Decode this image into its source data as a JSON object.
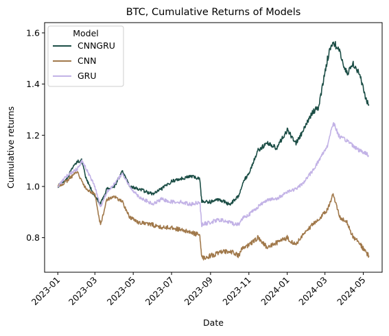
{
  "chart_data": {
    "type": "line",
    "title": "BTC, Cumulative Returns of Models",
    "xlabel": "Date",
    "ylabel": "Cumulative returns",
    "xlim": [
      "2022-12-11",
      "2024-05-31"
    ],
    "ylim": [
      0.665,
      1.64
    ],
    "x_ticks": [
      "2023-01",
      "2023-03",
      "2023-05",
      "2023-07",
      "2023-09",
      "2023-11",
      "2024-01",
      "2024-03",
      "2024-05"
    ],
    "y_ticks": [
      0.8,
      1.0,
      1.2,
      1.4,
      1.6
    ],
    "y_tick_labels": [
      "0.8",
      "1.0",
      "1.2",
      "1.4",
      "1.6"
    ],
    "legend": {
      "title": "Model",
      "placement": "top-left"
    },
    "grid": false,
    "x": [
      "2023-01-01",
      "2023-01-15",
      "2023-02-01",
      "2023-02-08",
      "2023-02-15",
      "2023-03-01",
      "2023-03-10",
      "2023-03-20",
      "2023-04-01",
      "2023-04-14",
      "2023-04-25",
      "2023-05-10",
      "2023-06-01",
      "2023-06-15",
      "2023-07-01",
      "2023-07-15",
      "2023-08-01",
      "2023-08-15",
      "2023-08-18",
      "2023-09-01",
      "2023-09-15",
      "2023-10-01",
      "2023-10-15",
      "2023-10-23",
      "2023-11-01",
      "2023-11-15",
      "2023-12-01",
      "2023-12-15",
      "2024-01-01",
      "2024-01-15",
      "2024-01-25",
      "2024-02-10",
      "2024-02-20",
      "2024-03-05",
      "2024-03-14",
      "2024-03-25",
      "2024-04-05",
      "2024-04-15",
      "2024-04-25",
      "2024-05-05",
      "2024-05-10"
    ],
    "series": [
      {
        "name": "CNNGRU",
        "color": "#1b4d45",
        "values": [
          1.0,
          1.03,
          1.1,
          1.1,
          1.03,
          0.96,
          0.93,
          0.99,
          1.0,
          1.06,
          1.0,
          0.99,
          0.97,
          0.99,
          1.02,
          1.03,
          1.04,
          1.03,
          0.94,
          0.94,
          0.95,
          0.93,
          0.96,
          1.02,
          1.05,
          1.14,
          1.17,
          1.15,
          1.22,
          1.17,
          1.21,
          1.29,
          1.31,
          1.5,
          1.57,
          1.52,
          1.44,
          1.48,
          1.44,
          1.34,
          1.32
        ]
      },
      {
        "name": "CNN",
        "color": "#a0784a",
        "values": [
          1.0,
          1.02,
          1.06,
          1.02,
          0.99,
          0.97,
          0.85,
          0.95,
          0.96,
          0.94,
          0.88,
          0.86,
          0.85,
          0.84,
          0.84,
          0.83,
          0.82,
          0.81,
          0.72,
          0.73,
          0.74,
          0.75,
          0.73,
          0.76,
          0.77,
          0.8,
          0.76,
          0.78,
          0.8,
          0.77,
          0.81,
          0.85,
          0.87,
          0.91,
          0.97,
          0.88,
          0.86,
          0.8,
          0.78,
          0.74,
          0.73
        ]
      },
      {
        "name": "GRU",
        "color": "#c2b2e6",
        "values": [
          1.0,
          1.04,
          1.07,
          1.1,
          1.07,
          1.0,
          0.92,
          0.98,
          1.01,
          1.05,
          1.0,
          0.96,
          0.93,
          0.95,
          0.94,
          0.94,
          0.93,
          0.94,
          0.85,
          0.86,
          0.87,
          0.86,
          0.85,
          0.88,
          0.89,
          0.92,
          0.95,
          0.95,
          0.98,
          0.99,
          1.01,
          1.06,
          1.1,
          1.16,
          1.25,
          1.19,
          1.18,
          1.16,
          1.14,
          1.13,
          1.12
        ]
      }
    ]
  }
}
